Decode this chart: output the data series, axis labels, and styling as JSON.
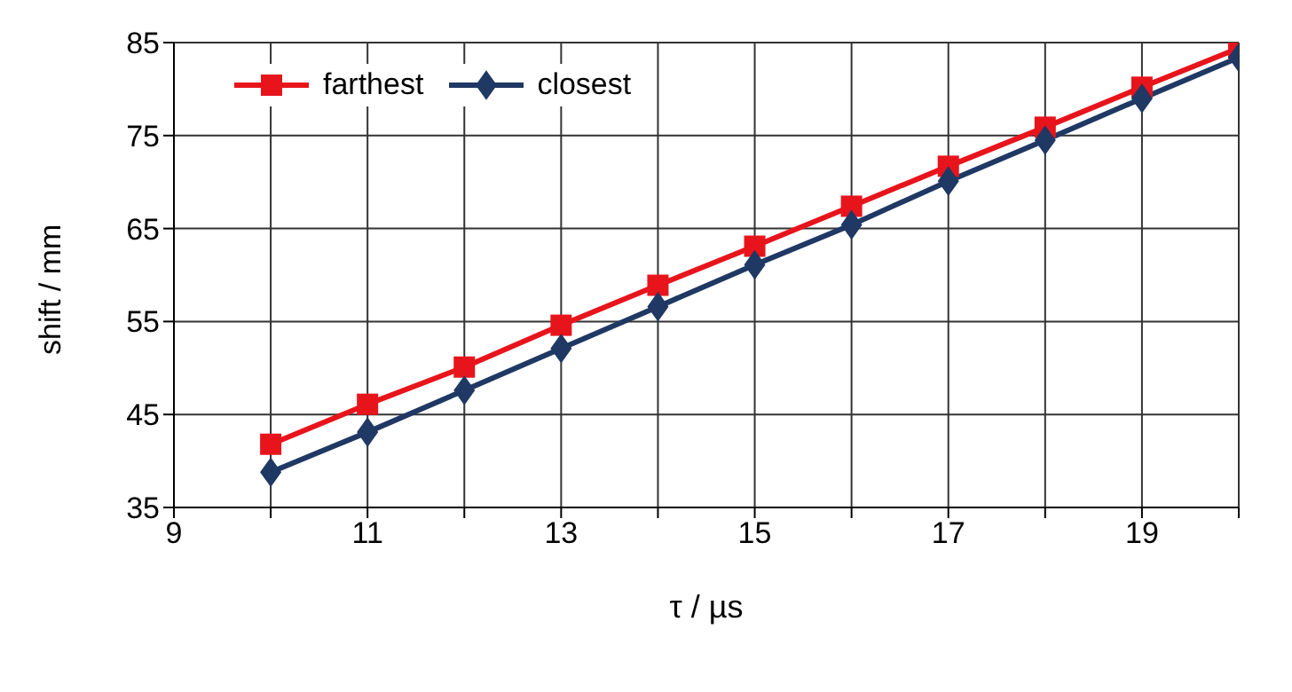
{
  "chart_data": {
    "type": "line",
    "xlabel": "τ / µs",
    "ylabel": "shift / mm",
    "x": [
      10,
      11,
      12,
      13,
      14,
      15,
      16,
      17,
      18,
      19,
      20
    ],
    "series": [
      {
        "name": "farthest",
        "color": "#e8141c",
        "marker": "square",
        "values": [
          41.8,
          46.1,
          50.1,
          54.6,
          58.9,
          63.1,
          67.4,
          71.7,
          75.9,
          80.2,
          84.4
        ]
      },
      {
        "name": "closest",
        "color": "#1f3864",
        "marker": "diamond",
        "values": [
          38.8,
          43.1,
          47.6,
          52.1,
          56.6,
          61.1,
          65.4,
          70.1,
          74.5,
          79.0,
          83.4
        ]
      }
    ],
    "xlim": [
      9,
      20
    ],
    "xticks": [
      9,
      {
        "value": 10,
        "label": null
      },
      11,
      {
        "value": 12,
        "label": null
      },
      13,
      {
        "value": 14,
        "label": null
      },
      15,
      {
        "value": 16,
        "label": null
      },
      17,
      {
        "value": 18,
        "label": null
      },
      19,
      {
        "value": 20,
        "label": null
      }
    ],
    "ylim": [
      35,
      85
    ],
    "yticks": [
      35,
      45,
      55,
      65,
      75,
      85
    ],
    "grid": true,
    "legend": "top left",
    "line_style": "solid"
  }
}
